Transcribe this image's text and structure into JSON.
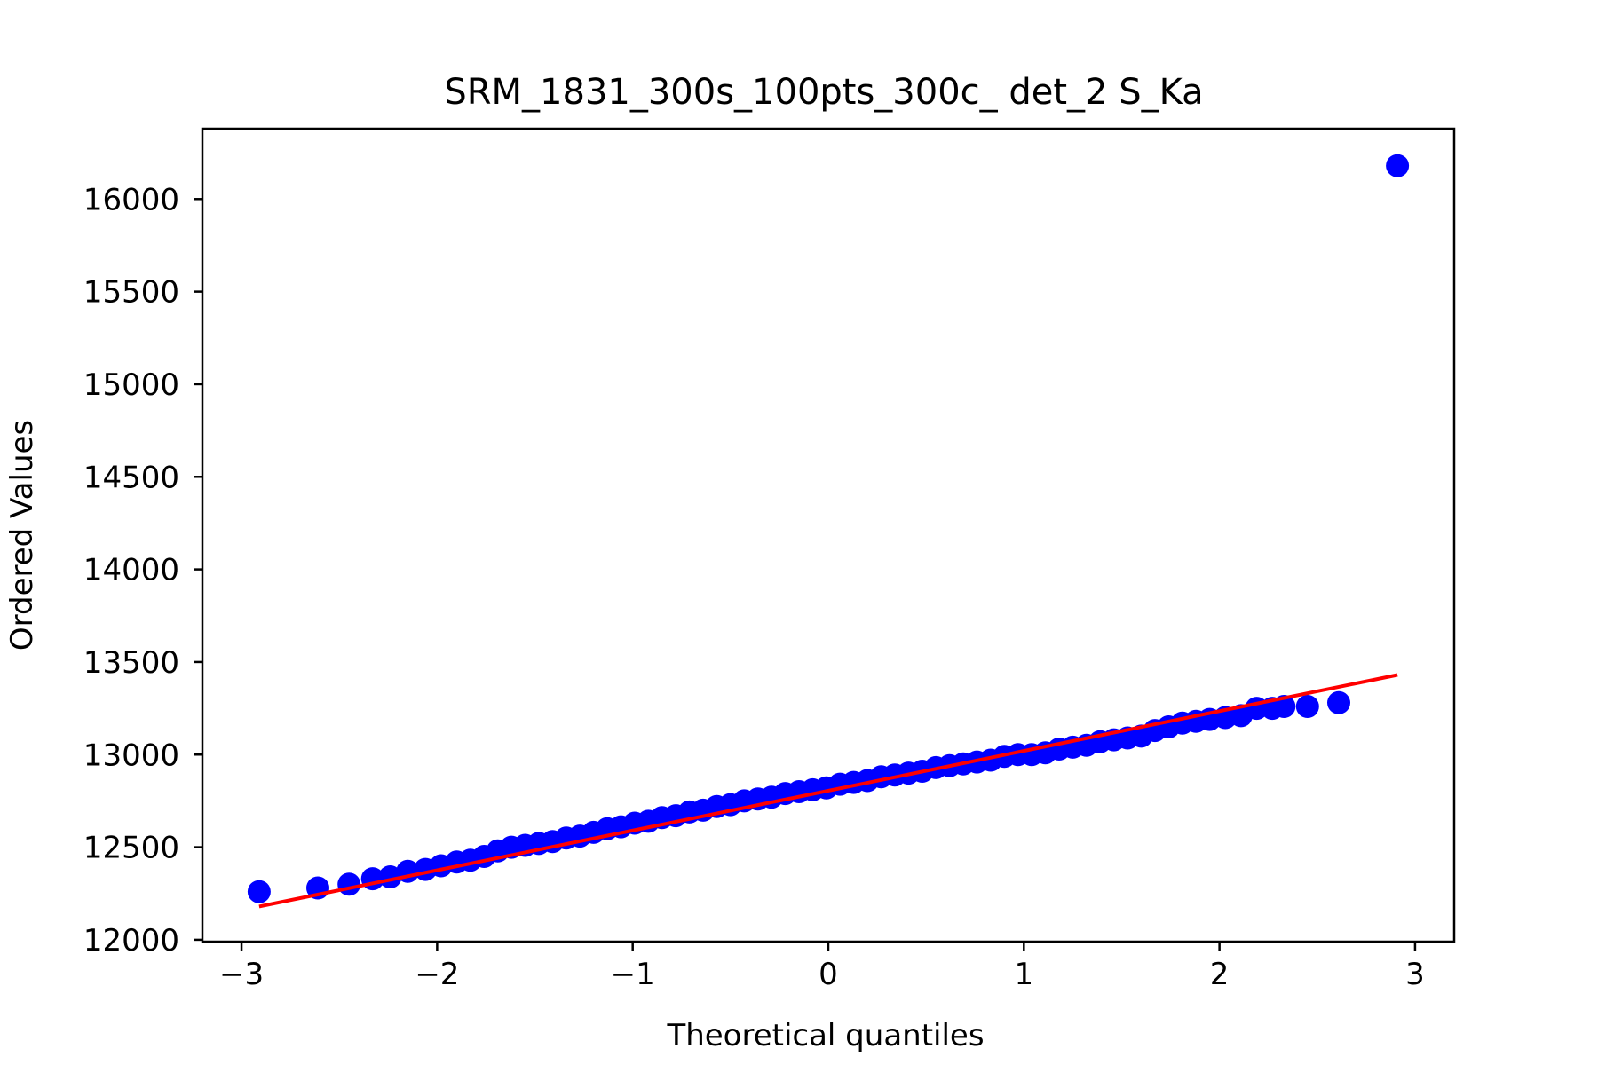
{
  "chart_data": {
    "type": "scatter",
    "title": "SRM_1831_300s_100pts_300c_ det_2 S_Ka",
    "xlabel": "Theoretical quantiles",
    "ylabel": "Ordered Values",
    "xlim": [
      -3.2,
      3.2
    ],
    "ylim": [
      11990,
      16380
    ],
    "xticks": [
      -3,
      -2,
      -1,
      0,
      1,
      2,
      3
    ],
    "xtick_labels": [
      "−3",
      "−2",
      "−1",
      "0",
      "1",
      "2",
      "3"
    ],
    "yticks": [
      12000,
      12500,
      13000,
      13500,
      14000,
      14500,
      15000,
      15500,
      16000
    ],
    "ytick_labels": [
      "12000",
      "12500",
      "13000",
      "13500",
      "14000",
      "14500",
      "15000",
      "15500",
      "16000"
    ],
    "grid": false,
    "legend": "none",
    "series": [
      {
        "kind": "points",
        "color": "#0000ff",
        "x": [
          -2.91,
          -2.61,
          -2.45,
          -2.33,
          -2.24,
          -2.15,
          -2.06,
          -1.98,
          -1.9,
          -1.83,
          -1.76,
          -1.69,
          -1.62,
          -1.55,
          -1.48,
          -1.41,
          -1.34,
          -1.27,
          -1.2,
          -1.13,
          -1.06,
          -0.99,
          -0.92,
          -0.85,
          -0.78,
          -0.71,
          -0.64,
          -0.57,
          -0.5,
          -0.43,
          -0.36,
          -0.29,
          -0.22,
          -0.15,
          -0.08,
          -0.01,
          0.06,
          0.13,
          0.2,
          0.27,
          0.34,
          0.41,
          0.48,
          0.55,
          0.62,
          0.69,
          0.76,
          0.83,
          0.9,
          0.97,
          1.04,
          1.11,
          1.18,
          1.25,
          1.32,
          1.39,
          1.46,
          1.53,
          1.6,
          1.67,
          1.74,
          1.81,
          1.88,
          1.95,
          2.03,
          2.11,
          2.19,
          2.27,
          2.33,
          2.45,
          2.61,
          2.91
        ],
        "y": [
          12260,
          12280,
          12300,
          12330,
          12340,
          12370,
          12380,
          12400,
          12420,
          12430,
          12450,
          12480,
          12500,
          12510,
          12520,
          12530,
          12550,
          12560,
          12580,
          12600,
          12610,
          12630,
          12640,
          12660,
          12670,
          12690,
          12700,
          12720,
          12730,
          12750,
          12760,
          12770,
          12790,
          12800,
          12810,
          12820,
          12840,
          12850,
          12860,
          12880,
          12890,
          12900,
          12910,
          12930,
          12940,
          12950,
          12960,
          12970,
          12990,
          13000,
          13000,
          13010,
          13030,
          13040,
          13050,
          13070,
          13080,
          13090,
          13100,
          13130,
          13150,
          13170,
          13180,
          13190,
          13200,
          13210,
          13250,
          13250,
          13260,
          13260,
          13280,
          16180
        ]
      },
      {
        "kind": "line",
        "color": "#ff0000",
        "x": [
          -2.91,
          2.91
        ],
        "y": [
          12180,
          13430
        ]
      }
    ]
  }
}
